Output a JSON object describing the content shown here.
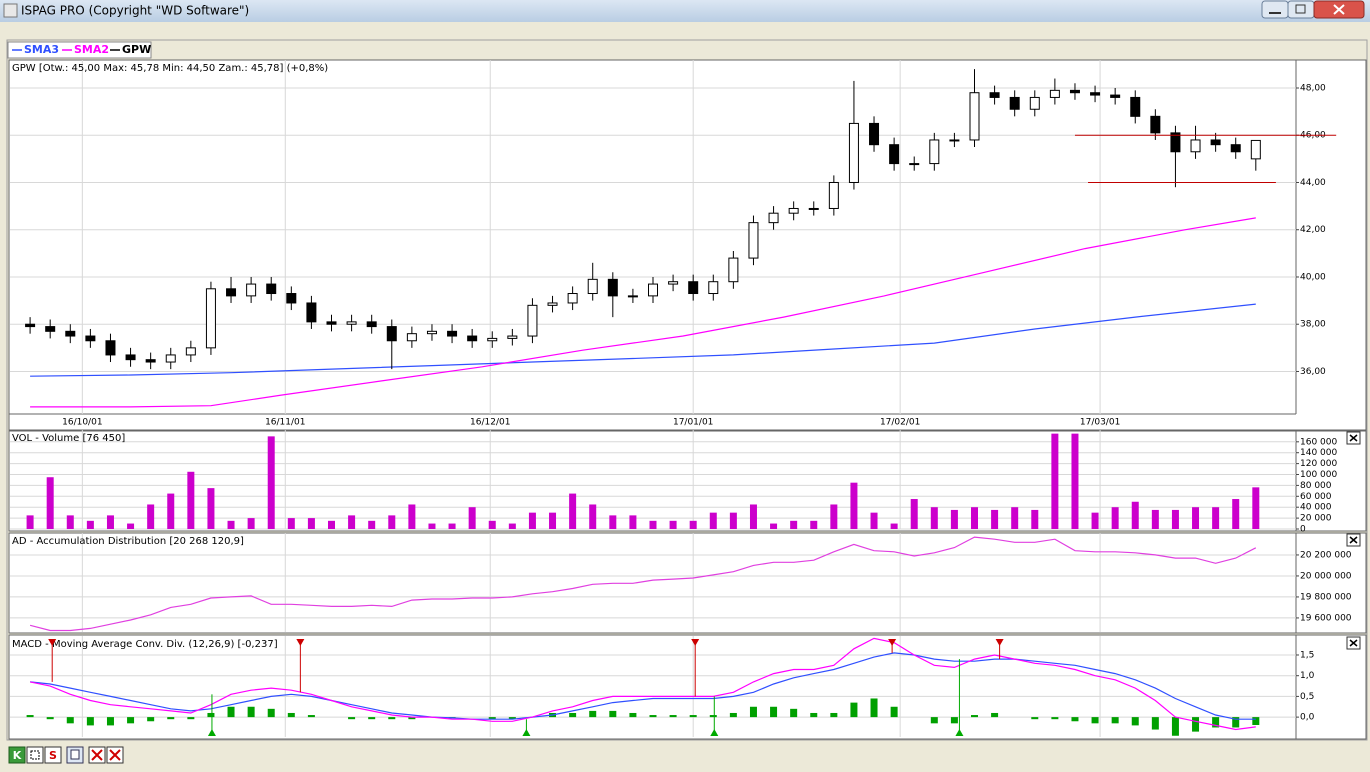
{
  "window": {
    "title": "ISPAG PRO (Copyright \"WD Software\")"
  },
  "toolbar": [
    "K",
    "S"
  ],
  "chart_data": [
    {
      "type": "candlestick",
      "title": "GPW [Otw.: 45,00  Max: 45,78  Min: 44,50  Zam.: 45,78] (+0,8%)",
      "xlim": [
        -2,
        126
      ],
      "xticks": [
        {
          "value": 5.2,
          "label": "16/10/01"
        },
        {
          "value": 25.4,
          "label": "16/11/01"
        },
        {
          "value": 45.8,
          "label": "16/12/01"
        },
        {
          "value": 66,
          "label": "17/01/01"
        },
        {
          "value": 86.6,
          "label": "17/02/01"
        },
        {
          "value": 106.5,
          "label": "17/03/01"
        }
      ],
      "ylim": [
        34.2,
        49.1
      ],
      "yticks": [
        {
          "value": 36,
          "label": "36,00"
        },
        {
          "value": 38,
          "label": "38,00"
        },
        {
          "value": 40,
          "label": "40,00"
        },
        {
          "value": 42,
          "label": "42,00"
        },
        {
          "value": 44,
          "label": "44,00"
        },
        {
          "value": 46,
          "label": "46,00"
        },
        {
          "value": 48,
          "label": "48,00"
        }
      ],
      "grid": true,
      "series": [
        {
          "name": "SMA3",
          "type": "line",
          "color": "#3050ff",
          "x": [
            0,
            10,
            20,
            30,
            40,
            50,
            60,
            70,
            80,
            90,
            100,
            110,
            122
          ],
          "values": [
            35.8,
            35.85,
            35.95,
            36.1,
            36.25,
            36.4,
            36.55,
            36.7,
            36.95,
            37.2,
            37.8,
            38.3,
            38.85
          ]
        },
        {
          "name": "SMA2",
          "type": "line",
          "color": "#ff00ff",
          "x": [
            0,
            10,
            18,
            25,
            35,
            45,
            55,
            65,
            75,
            85,
            95,
            105,
            115,
            122
          ],
          "values": [
            34.5,
            34.5,
            34.55,
            35.0,
            35.6,
            36.2,
            36.9,
            37.5,
            38.3,
            39.2,
            40.2,
            41.2,
            42.0,
            42.5
          ]
        },
        {
          "name": "GPW",
          "type": "candlestick",
          "color": "#000000",
          "x": [
            0,
            2,
            4,
            6,
            8,
            10,
            12,
            14,
            16,
            18,
            20,
            22,
            24,
            26,
            28,
            30,
            32,
            34,
            36,
            38,
            40,
            42,
            44,
            46,
            48,
            50,
            52,
            54,
            56,
            58,
            60,
            62,
            64,
            66,
            68,
            70,
            72,
            74,
            76,
            78,
            80,
            82,
            84,
            86,
            88,
            90,
            92,
            94,
            96,
            98,
            100,
            102,
            104,
            106,
            108,
            110,
            112,
            114,
            116,
            118,
            120,
            122
          ],
          "open": [
            38.0,
            37.9,
            37.7,
            37.5,
            37.3,
            36.7,
            36.5,
            36.4,
            36.7,
            37.0,
            39.5,
            39.2,
            39.7,
            39.3,
            38.9,
            38.1,
            38.0,
            38.1,
            37.9,
            37.3,
            37.6,
            37.7,
            37.5,
            37.3,
            37.4,
            37.5,
            38.8,
            38.9,
            39.3,
            39.9,
            39.2,
            39.2,
            39.7,
            39.8,
            39.3,
            39.8,
            40.8,
            42.3,
            42.7,
            42.9,
            42.9,
            44.0,
            46.5,
            45.6,
            44.8,
            44.8,
            45.8,
            45.8,
            47.8,
            47.6,
            47.1,
            47.6,
            47.9,
            47.8,
            47.7,
            47.6,
            46.8,
            46.1,
            45.3,
            45.8,
            45.6,
            45.0
          ],
          "high": [
            38.3,
            38.2,
            38.0,
            37.8,
            37.6,
            37.0,
            36.8,
            37.0,
            37.3,
            39.8,
            40.0,
            40.0,
            40.0,
            39.6,
            39.2,
            38.4,
            38.4,
            38.4,
            38.2,
            37.9,
            38.0,
            38.0,
            37.8,
            37.7,
            37.8,
            39.1,
            39.2,
            39.6,
            40.6,
            40.2,
            39.5,
            40.0,
            40.1,
            40.1,
            40.1,
            41.1,
            42.6,
            43.0,
            43.2,
            43.2,
            44.3,
            48.3,
            46.8,
            45.9,
            45.1,
            46.1,
            46.1,
            48.8,
            48.1,
            47.9,
            47.9,
            48.4,
            48.2,
            48.1,
            48.0,
            47.9,
            47.1,
            46.4,
            46.4,
            46.1,
            45.9,
            45.78
          ],
          "low": [
            37.6,
            37.4,
            37.2,
            37.0,
            36.4,
            36.2,
            36.1,
            36.1,
            36.4,
            36.7,
            38.9,
            38.9,
            39.0,
            38.6,
            37.8,
            37.7,
            37.7,
            37.6,
            36.1,
            37.0,
            37.3,
            37.2,
            37.0,
            37.0,
            37.1,
            37.2,
            38.5,
            38.6,
            39.0,
            38.3,
            38.9,
            38.9,
            39.4,
            39.0,
            39.0,
            39.5,
            40.5,
            42.0,
            42.4,
            42.6,
            42.6,
            43.7,
            45.3,
            44.5,
            44.5,
            44.5,
            45.5,
            45.5,
            47.3,
            46.8,
            46.8,
            47.3,
            47.5,
            47.4,
            47.3,
            46.5,
            45.8,
            43.8,
            45.0,
            45.3,
            45.0,
            44.5
          ],
          "close": [
            37.9,
            37.7,
            37.5,
            37.3,
            36.7,
            36.5,
            36.4,
            36.7,
            37.0,
            39.5,
            39.2,
            39.7,
            39.3,
            38.9,
            38.1,
            38.0,
            38.1,
            37.9,
            37.3,
            37.6,
            37.7,
            37.5,
            37.3,
            37.4,
            37.5,
            38.8,
            38.9,
            39.3,
            39.9,
            39.2,
            39.2,
            39.7,
            39.8,
            39.3,
            39.8,
            40.8,
            42.3,
            42.7,
            42.9,
            42.9,
            44.0,
            46.5,
            45.6,
            44.8,
            44.8,
            45.8,
            45.8,
            47.8,
            47.6,
            47.1,
            47.6,
            47.9,
            47.8,
            47.7,
            47.6,
            46.8,
            46.1,
            45.3,
            45.8,
            45.6,
            45.3,
            45.78
          ]
        }
      ],
      "hlines": [
        {
          "value": 46.0,
          "from": 104,
          "to": 130,
          "color": "#c00000"
        },
        {
          "value": 44.0,
          "from": 105.3,
          "to": 124,
          "color": "#c00000"
        }
      ]
    },
    {
      "type": "bar",
      "title": "VOL - Volume [76 450]",
      "color": "#cc00cc",
      "x": [
        0,
        2,
        4,
        6,
        8,
        10,
        12,
        14,
        16,
        18,
        20,
        22,
        24,
        26,
        28,
        30,
        32,
        34,
        36,
        38,
        40,
        42,
        44,
        46,
        48,
        50,
        52,
        54,
        56,
        58,
        60,
        62,
        64,
        66,
        68,
        70,
        72,
        74,
        76,
        78,
        80,
        82,
        84,
        86,
        88,
        90,
        92,
        94,
        96,
        98,
        100,
        102,
        104,
        106,
        108,
        110,
        112,
        114,
        116,
        118,
        120,
        122
      ],
      "values": [
        25000,
        95000,
        25000,
        15000,
        25000,
        10000,
        45000,
        65000,
        105000,
        75000,
        15000,
        20000,
        170000,
        20000,
        20000,
        15000,
        25000,
        15000,
        25000,
        45000,
        10000,
        10000,
        40000,
        15000,
        10000,
        30000,
        30000,
        65000,
        45000,
        25000,
        25000,
        15000,
        15000,
        15000,
        30000,
        30000,
        45000,
        10000,
        15000,
        15000,
        45000,
        85000,
        30000,
        10000,
        55000,
        40000,
        35000,
        40000,
        35000,
        40000,
        35000,
        175000,
        175000,
        30000,
        40000,
        50000,
        35000,
        35000,
        40000,
        40000,
        55000,
        76450
      ],
      "ylim": [
        0,
        178000
      ],
      "yticks": [
        0,
        {
          "value": 20000,
          "label": "20 000"
        },
        {
          "value": 40000,
          "label": "40 000"
        },
        {
          "value": 60000,
          "label": "60 000"
        },
        {
          "value": 80000,
          "label": "80 000"
        },
        {
          "value": 100000,
          "label": "100 000"
        },
        {
          "value": 120000,
          "label": "120 000"
        },
        {
          "value": 140000,
          "label": "140 000"
        },
        {
          "value": 160000,
          "label": "160 000"
        }
      ],
      "grid": true
    },
    {
      "type": "line",
      "title": "AD - Accumulation Distribution [20 268 120,9]",
      "color": "#e040e0",
      "x": [
        0,
        2,
        4,
        6,
        8,
        10,
        12,
        14,
        16,
        18,
        20,
        22,
        24,
        26,
        28,
        30,
        32,
        34,
        36,
        38,
        40,
        42,
        44,
        46,
        48,
        50,
        52,
        54,
        56,
        58,
        60,
        62,
        64,
        66,
        68,
        70,
        72,
        74,
        76,
        78,
        80,
        82,
        84,
        86,
        88,
        90,
        92,
        94,
        96,
        98,
        100,
        102,
        104,
        106,
        108,
        110,
        112,
        114,
        116,
        118,
        120,
        122
      ],
      "values": [
        19530000,
        19480000,
        19480000,
        19500000,
        19540000,
        19580000,
        19630000,
        19700000,
        19730000,
        19790000,
        19800000,
        19810000,
        19730000,
        19730000,
        19720000,
        19710000,
        19710000,
        19720000,
        19710000,
        19770000,
        19780000,
        19780000,
        19790000,
        19790000,
        19800000,
        19830000,
        19850000,
        19880000,
        19920000,
        19930000,
        19930000,
        19960000,
        19970000,
        19980000,
        20010000,
        20040000,
        20100000,
        20130000,
        20130000,
        20150000,
        20230000,
        20300000,
        20240000,
        20230000,
        20190000,
        20220000,
        20270000,
        20370000,
        20350000,
        20320000,
        20320000,
        20350000,
        20240000,
        20230000,
        20230000,
        20220000,
        20200000,
        20170000,
        20170000,
        20120000,
        20170000,
        20268120.9
      ],
      "ylim": [
        19466000,
        20390000
      ],
      "yticks": [
        {
          "value": 19600000,
          "label": "19 600 000"
        },
        {
          "value": 19800000,
          "label": "19 800 000"
        },
        {
          "value": 20000000,
          "label": "20 000 000"
        },
        {
          "value": 20200000,
          "label": "20 200 000"
        }
      ],
      "grid": true
    },
    {
      "type": "line",
      "title": "MACD - Moving Average Conv. Div. (12,26,9) [-0,237]",
      "x": [
        0,
        2,
        4,
        6,
        8,
        10,
        12,
        14,
        16,
        18,
        20,
        22,
        24,
        26,
        28,
        30,
        32,
        34,
        36,
        38,
        40,
        42,
        44,
        46,
        48,
        50,
        52,
        54,
        56,
        58,
        60,
        62,
        64,
        66,
        68,
        70,
        72,
        74,
        76,
        78,
        80,
        82,
        84,
        86,
        88,
        90,
        92,
        94,
        96,
        98,
        100,
        102,
        104,
        106,
        108,
        110,
        112,
        114,
        116,
        118,
        120,
        122
      ],
      "ylim": [
        -0.48,
        1.91
      ],
      "yticks": [
        {
          "value": 0,
          "label": "0,0"
        },
        {
          "value": 0.5,
          "label": "0,5"
        },
        {
          "value": 1,
          "label": "1,0"
        },
        {
          "value": 1.5,
          "label": "1,5"
        }
      ],
      "grid": true,
      "series": [
        {
          "type": "bar",
          "color": "#00a000",
          "values": [
            0.05,
            -0.05,
            -0.15,
            -0.2,
            -0.2,
            -0.15,
            -0.1,
            -0.05,
            -0.05,
            0.1,
            0.25,
            0.25,
            0.2,
            0.1,
            0.05,
            0.0,
            -0.05,
            -0.05,
            -0.05,
            -0.05,
            0.0,
            -0.03,
            0.0,
            -0.05,
            -0.05,
            0.0,
            0.1,
            0.1,
            0.15,
            0.15,
            0.1,
            0.05,
            0.05,
            0.05,
            0.05,
            0.1,
            0.25,
            0.25,
            0.2,
            0.1,
            0.1,
            0.35,
            0.45,
            0.25,
            0.0,
            -0.15,
            -0.15,
            0.05,
            0.1,
            0.0,
            -0.05,
            -0.05,
            -0.1,
            -0.15,
            -0.15,
            -0.2,
            -0.3,
            -0.45,
            -0.35,
            -0.25,
            -0.25,
            -0.19
          ]
        },
        {
          "type": "line",
          "color": "#3050ff",
          "values": [
            0.85,
            0.8,
            0.7,
            0.6,
            0.5,
            0.4,
            0.3,
            0.2,
            0.15,
            0.2,
            0.3,
            0.4,
            0.5,
            0.55,
            0.5,
            0.4,
            0.3,
            0.2,
            0.1,
            0.05,
            0.0,
            -0.02,
            -0.05,
            -0.05,
            -0.05,
            0.0,
            0.05,
            0.15,
            0.25,
            0.35,
            0.4,
            0.45,
            0.45,
            0.45,
            0.45,
            0.5,
            0.6,
            0.8,
            0.95,
            1.05,
            1.15,
            1.3,
            1.45,
            1.55,
            1.5,
            1.4,
            1.35,
            1.35,
            1.4,
            1.4,
            1.35,
            1.3,
            1.25,
            1.15,
            1.05,
            0.9,
            0.7,
            0.45,
            0.25,
            0.05,
            -0.05,
            -0.05
          ]
        },
        {
          "type": "line",
          "color": "#ff00ff",
          "values": [
            0.85,
            0.75,
            0.55,
            0.4,
            0.3,
            0.25,
            0.2,
            0.15,
            0.1,
            0.3,
            0.55,
            0.65,
            0.7,
            0.65,
            0.55,
            0.4,
            0.25,
            0.15,
            0.05,
            0.0,
            0.0,
            -0.05,
            -0.05,
            -0.1,
            -0.1,
            0.0,
            0.15,
            0.25,
            0.4,
            0.5,
            0.5,
            0.5,
            0.5,
            0.5,
            0.5,
            0.6,
            0.85,
            1.05,
            1.15,
            1.15,
            1.25,
            1.65,
            1.9,
            1.8,
            1.5,
            1.25,
            1.2,
            1.4,
            1.5,
            1.4,
            1.3,
            1.25,
            1.15,
            1.0,
            0.9,
            0.7,
            0.4,
            0.0,
            -0.1,
            -0.2,
            -0.3,
            -0.237
          ]
        }
      ],
      "sell_signals": {
        "color": "#cc0000",
        "x": [
          2.2,
          26.9,
          66.2,
          85.8,
          96.5
        ],
        "values": [
          0.85,
          0.6,
          0.5,
          1.55,
          1.4
        ]
      },
      "buy_signals": {
        "color": "#00aa00",
        "x": [
          18.1,
          49.4,
          68.1,
          92.5
        ],
        "values": [
          0.55,
          -0.05,
          0.5,
          1.4
        ]
      }
    }
  ]
}
